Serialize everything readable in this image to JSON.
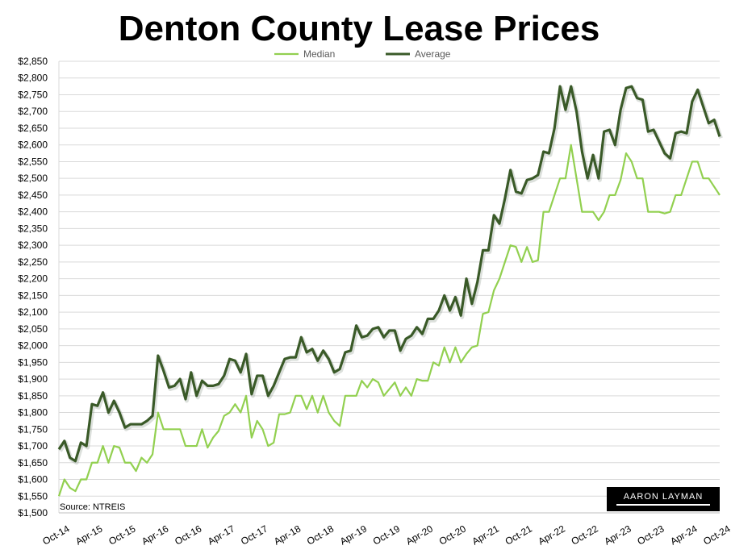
{
  "chart_data": {
    "type": "line",
    "title": "Denton County Lease Prices",
    "source": "Source: NTREIS",
    "logo_text": "AARON LAYMAN",
    "ylim": [
      1500,
      2850
    ],
    "y_ticks": [
      "$1,500",
      "$1,550",
      "$1,600",
      "$1,650",
      "$1,700",
      "$1,750",
      "$1,800",
      "$1,850",
      "$1,900",
      "$1,950",
      "$2,000",
      "$2,050",
      "$2,100",
      "$2,150",
      "$2,200",
      "$2,250",
      "$2,300",
      "$2,350",
      "$2,400",
      "$2,450",
      "$2,500",
      "$2,550",
      "$2,600",
      "$2,650",
      "$2,700",
      "$2,750",
      "$2,800",
      "$2,850"
    ],
    "x_ticks": [
      "Oct-14",
      "Apr-15",
      "Oct-15",
      "Apr-16",
      "Oct-16",
      "Apr-17",
      "Oct-17",
      "Apr-18",
      "Oct-18",
      "Apr-19",
      "Oct-19",
      "Apr-20",
      "Oct-20",
      "Apr-21",
      "Oct-21",
      "Apr-22",
      "Oct-22",
      "Apr-23",
      "Oct-23",
      "Apr-24",
      "Oct-24"
    ],
    "grid": true,
    "legend": "top",
    "series": [
      {
        "name": "Median",
        "color": "#92d050",
        "values": [
          1550,
          1600,
          1575,
          1565,
          1600,
          1600,
          1650,
          1650,
          1700,
          1650,
          1700,
          1695,
          1650,
          1650,
          1625,
          1665,
          1650,
          1675,
          1800,
          1750,
          1750,
          1750,
          1750,
          1700,
          1700,
          1700,
          1750,
          1695,
          1725,
          1745,
          1790,
          1800,
          1825,
          1800,
          1850,
          1725,
          1775,
          1750,
          1700,
          1710,
          1795,
          1795,
          1800,
          1850,
          1850,
          1810,
          1850,
          1800,
          1850,
          1800,
          1775,
          1760,
          1850,
          1850,
          1850,
          1895,
          1875,
          1900,
          1890,
          1850,
          1870,
          1890,
          1850,
          1875,
          1850,
          1900,
          1895,
          1895,
          1950,
          1940,
          1995,
          1950,
          1995,
          1950,
          1975,
          1995,
          2000,
          2095,
          2100,
          2165,
          2200,
          2250,
          2300,
          2295,
          2250,
          2295,
          2250,
          2255,
          2400,
          2400,
          2450,
          2500,
          2500,
          2600,
          2500,
          2400,
          2400,
          2400,
          2375,
          2400,
          2450,
          2450,
          2495,
          2575,
          2550,
          2500,
          2500,
          2400,
          2400,
          2400,
          2395,
          2400,
          2450,
          2450,
          2500,
          2550,
          2550,
          2500,
          2500,
          2475,
          2450
        ]
      },
      {
        "name": "Average",
        "color": "#3a5a28",
        "values": [
          1690,
          1715,
          1665,
          1655,
          1710,
          1700,
          1825,
          1820,
          1860,
          1800,
          1835,
          1800,
          1755,
          1765,
          1765,
          1765,
          1775,
          1790,
          1970,
          1925,
          1875,
          1880,
          1900,
          1840,
          1920,
          1850,
          1895,
          1880,
          1880,
          1885,
          1910,
          1960,
          1955,
          1920,
          1975,
          1855,
          1910,
          1910,
          1850,
          1880,
          1920,
          1960,
          1965,
          1965,
          2025,
          1980,
          1990,
          1955,
          1985,
          1960,
          1920,
          1930,
          1980,
          1985,
          2060,
          2025,
          2030,
          2050,
          2055,
          2025,
          2045,
          2045,
          1985,
          2020,
          2030,
          2055,
          2035,
          2080,
          2080,
          2105,
          2150,
          2105,
          2145,
          2090,
          2200,
          2125,
          2190,
          2285,
          2285,
          2390,
          2365,
          2440,
          2525,
          2460,
          2455,
          2495,
          2500,
          2510,
          2580,
          2575,
          2650,
          2775,
          2705,
          2775,
          2700,
          2580,
          2500,
          2570,
          2500,
          2640,
          2645,
          2600,
          2705,
          2770,
          2775,
          2740,
          2735,
          2640,
          2645,
          2610,
          2575,
          2560,
          2635,
          2640,
          2635,
          2730,
          2765,
          2715,
          2665,
          2675,
          2625
        ]
      }
    ]
  }
}
